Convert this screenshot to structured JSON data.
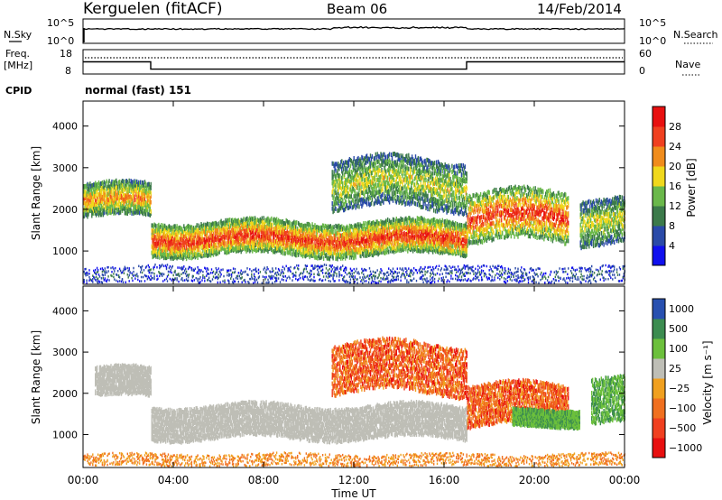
{
  "header": {
    "station": "Kerguelen (fitACF)",
    "beam": "Beam 06",
    "date": "14/Feb/2014"
  },
  "noise_panel": {
    "left_label": "N.Sky",
    "left_ticks": [
      "10^5",
      "10^0"
    ],
    "right_ticks": [
      "10^5",
      "10^0"
    ],
    "right_label": "N.Search",
    "right_label_style": "dotted"
  },
  "freq_panel": {
    "left_label_top": "Freq.",
    "left_label_bottom": "[MHz]",
    "left_ticks": [
      "18",
      "8"
    ],
    "right_ticks": [
      "60",
      "0"
    ],
    "right_label": "Nave",
    "right_label_style": "dotted",
    "freq_mhz": [
      {
        "from": "00:00",
        "to": "03:00",
        "value": 13
      },
      {
        "from": "03:00",
        "to": "17:00",
        "value": 10
      },
      {
        "from": "17:00",
        "to": "24:00",
        "value": 13
      }
    ]
  },
  "cpid": {
    "label": "CPID",
    "value": "normal (fast) 151"
  },
  "time_axis": {
    "ticks": [
      "00:00",
      "04:00",
      "08:00",
      "12:00",
      "16:00",
      "20:00",
      "00:00"
    ],
    "label": "Time UT",
    "range_hours": [
      0,
      24
    ]
  },
  "chart_data": [
    {
      "type": "heatmap",
      "quantity": "Power",
      "ylabel": "Slant Range [km]",
      "yticks": [
        "1000",
        "2000",
        "3000",
        "4000"
      ],
      "ylim": [
        200,
        4600
      ],
      "xlim_hours": [
        0,
        24
      ],
      "colorbar": {
        "label": "Power [dB]",
        "ticks": [
          "4",
          "8",
          "12",
          "16",
          "20",
          "24",
          "28"
        ],
        "colors": [
          "#1010ee",
          "#2a4aa8",
          "#3c7a4a",
          "#6ab84a",
          "#f0d81c",
          "#f08c1c",
          "#f04020",
          "#e81010"
        ],
        "range": [
          0,
          32
        ]
      },
      "regions": [
        {
          "t": [
            0.0,
            3.0
          ],
          "range_km": [
            1800,
            2600
          ],
          "level": "mid-high",
          "note": "descending band"
        },
        {
          "t": [
            3.0,
            17.0
          ],
          "range_km": [
            900,
            1700
          ],
          "level": "high",
          "note": "main E/F band"
        },
        {
          "t": [
            11.0,
            17.0
          ],
          "range_km": [
            2000,
            3200
          ],
          "level": "mid",
          "note": "upper patches"
        },
        {
          "t": [
            17.0,
            21.5
          ],
          "range_km": [
            1200,
            2400
          ],
          "level": "high"
        },
        {
          "t": [
            22.0,
            24.0
          ],
          "range_km": [
            1200,
            2300
          ],
          "level": "mid"
        },
        {
          "t": [
            0.0,
            24.0
          ],
          "range_km": [
            200,
            600
          ],
          "level": "low",
          "note": "ground scatter noise"
        }
      ]
    },
    {
      "type": "heatmap",
      "quantity": "Velocity",
      "ylabel": "Slant Range [km]",
      "yticks": [
        "1000",
        "2000",
        "3000",
        "4000"
      ],
      "ylim": [
        200,
        4600
      ],
      "xlim_hours": [
        0,
        24
      ],
      "colorbar": {
        "label": "Velocity [m s⁻¹]",
        "ticks": [
          "1000",
          "500",
          "100",
          "25",
          "−25",
          "−100",
          "−500",
          "−1000"
        ],
        "colors": [
          "#2850b0",
          "#3c8c50",
          "#6cc03c",
          "#bebeb6",
          "#f0a020",
          "#f07020",
          "#f04020",
          "#e81010"
        ],
        "range": [
          -1000,
          1000
        ]
      },
      "regions": [
        {
          "t": [
            0.5,
            3.0
          ],
          "range_km": [
            1900,
            2600
          ],
          "class": "ground-scatter"
        },
        {
          "t": [
            3.0,
            17.0
          ],
          "range_km": [
            900,
            1700
          ],
          "class": "ground-scatter"
        },
        {
          "t": [
            11.0,
            17.0
          ],
          "range_km": [
            2000,
            3200
          ],
          "class": "negative-velocity"
        },
        {
          "t": [
            17.0,
            21.5
          ],
          "range_km": [
            1200,
            2200
          ],
          "class": "negative-velocity"
        },
        {
          "t": [
            19.0,
            22.0
          ],
          "range_km": [
            1200,
            1600
          ],
          "class": "positive-velocity"
        },
        {
          "t": [
            22.5,
            24.0
          ],
          "range_km": [
            1200,
            2300
          ],
          "class": "positive-velocity"
        },
        {
          "t": [
            0.0,
            24.0
          ],
          "range_km": [
            200,
            500
          ],
          "class": "negative-velocity-sparse"
        }
      ]
    }
  ]
}
